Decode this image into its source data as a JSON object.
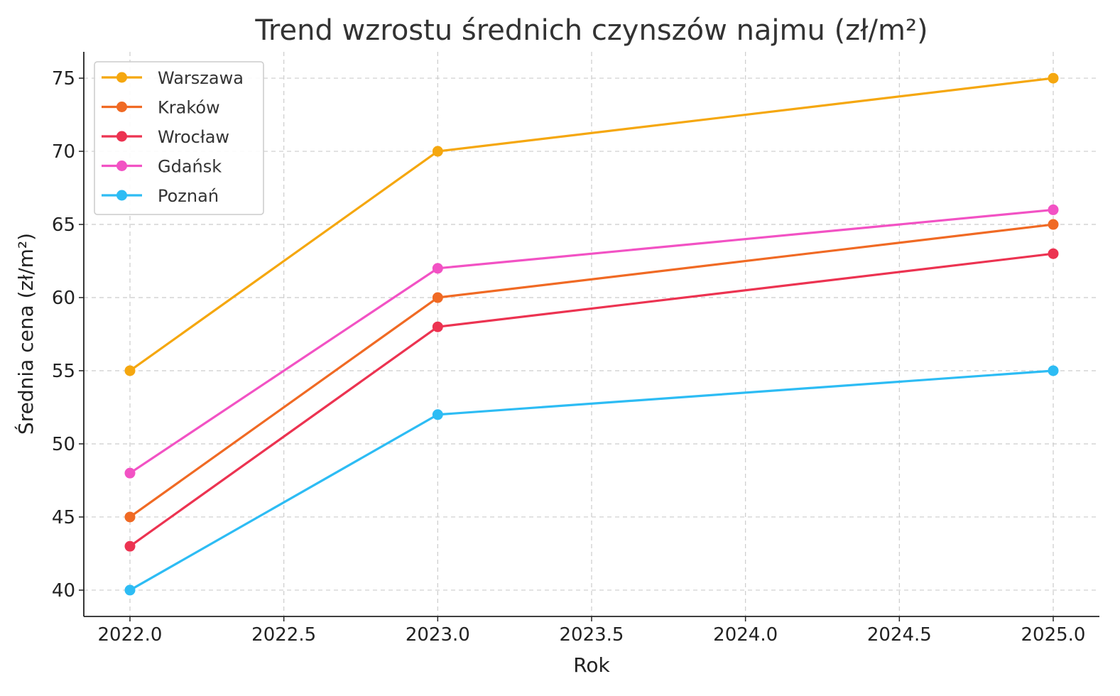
{
  "chart_data": {
    "type": "line",
    "title": "Trend wzrostu średnich czynszów najmu (zł/m²)",
    "xlabel": "Rok",
    "ylabel": "Średnia cena (zł/m²)",
    "x": [
      2022,
      2023,
      2025
    ],
    "xlim": [
      2021.85,
      2025.15
    ],
    "ylim": [
      38.2,
      76.8
    ],
    "xticks": [
      "2022.0",
      "2022.5",
      "2023.0",
      "2023.5",
      "2024.0",
      "2024.5",
      "2025.0"
    ],
    "xtick_values": [
      2022.0,
      2022.5,
      2023.0,
      2023.5,
      2024.0,
      2024.5,
      2025.0
    ],
    "yticks": [
      "40",
      "45",
      "50",
      "55",
      "60",
      "65",
      "70",
      "75"
    ],
    "ytick_values": [
      40,
      45,
      50,
      55,
      60,
      65,
      70,
      75
    ],
    "grid": true,
    "legend_position": "top-left",
    "series": [
      {
        "name": "Warszawa",
        "color": "#f5a70f",
        "values": [
          55,
          70,
          75
        ]
      },
      {
        "name": "Kraków",
        "color": "#f06a24",
        "values": [
          45,
          60,
          65
        ]
      },
      {
        "name": "Wrocław",
        "color": "#ec3351",
        "values": [
          43,
          58,
          63
        ]
      },
      {
        "name": "Gdańsk",
        "color": "#f252c4",
        "values": [
          48,
          62,
          66
        ]
      },
      {
        "name": "Poznań",
        "color": "#2dbcf4",
        "values": [
          40,
          52,
          55
        ]
      }
    ]
  }
}
